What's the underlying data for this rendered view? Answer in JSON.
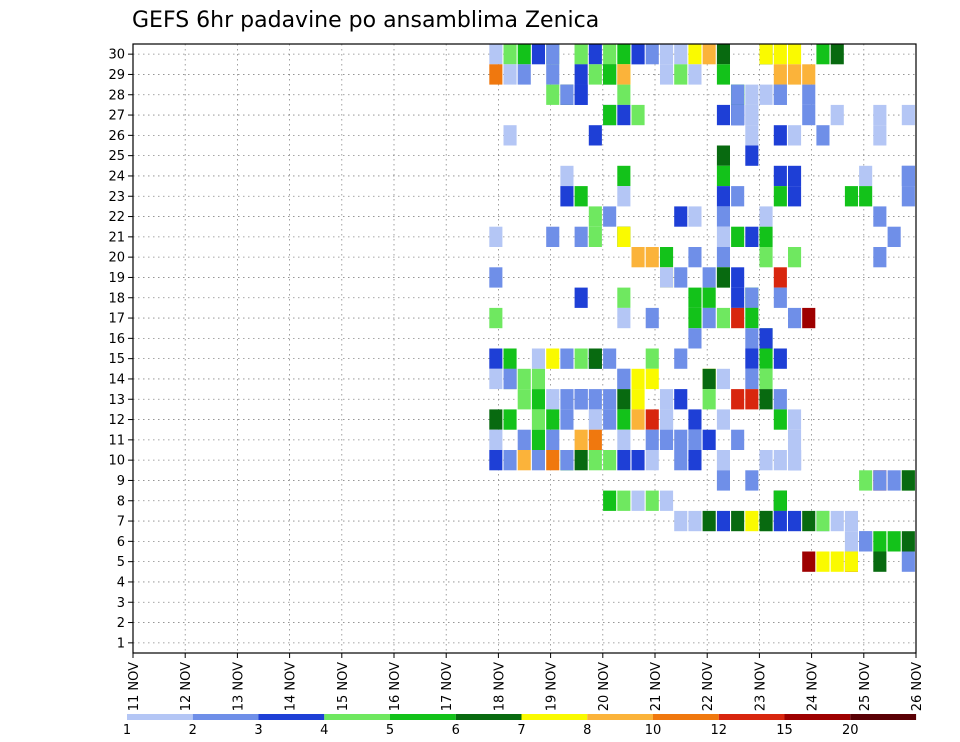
{
  "chart_data": {
    "type": "heatmap",
    "title": "GEFS 6hr padavine po ansamblima Zenica",
    "x_tick_labels": [
      "11 NOV",
      "12 NOV",
      "13 NOV",
      "14 NOV",
      "15 NOV",
      "16 NOV",
      "17 NOV",
      "18 NOV",
      "19 NOV",
      "20 NOV",
      "21 NOV",
      "22 NOV",
      "23 NOV",
      "24 NOV",
      "25 NOV",
      "26 NOV"
    ],
    "y_tick_labels": [
      "1",
      "2",
      "3",
      "4",
      "5",
      "6",
      "7",
      "8",
      "9",
      "10",
      "11",
      "12",
      "13",
      "14",
      "15",
      "16",
      "17",
      "18",
      "19",
      "20",
      "21",
      "22",
      "23",
      "24",
      "25",
      "26",
      "27",
      "28",
      "29",
      "30"
    ],
    "xlim": [
      0,
      60
    ],
    "ylim": [
      0.5,
      30.5
    ],
    "grid": true,
    "legend_position": "bottom",
    "colorbar": {
      "labels": [
        "1",
        "2",
        "3",
        "4",
        "5",
        "6",
        "7",
        "8",
        "10",
        "12",
        "15",
        "20"
      ],
      "colors": [
        "#b4c6f5",
        "#6f8fe8",
        "#1e3fd6",
        "#6fe860",
        "#13c21a",
        "#086a10",
        "#fafa00",
        "#fbb33a",
        "#f0780e",
        "#d8260e",
        "#9e0000",
        "#5a0005"
      ]
    },
    "cells": [
      [
        1,
        30,
        0
      ],
      [
        2,
        30,
        3
      ],
      [
        3,
        30,
        4
      ],
      [
        4,
        30,
        2
      ],
      [
        5,
        30,
        3
      ],
      [
        5,
        30,
        1
      ],
      [
        7,
        30,
        3
      ],
      [
        7,
        30,
        3
      ],
      [
        8,
        30,
        2
      ],
      [
        9,
        30,
        3
      ],
      [
        10,
        30,
        4
      ],
      [
        11,
        30,
        1
      ],
      [
        11,
        30,
        2
      ],
      [
        12,
        30,
        1
      ],
      [
        13,
        30,
        0
      ],
      [
        14,
        30,
        0
      ],
      [
        15,
        30,
        6
      ],
      [
        16,
        30,
        7
      ],
      [
        17,
        30,
        5
      ],
      [
        20,
        30,
        5
      ],
      [
        20,
        30,
        6
      ],
      [
        21,
        30,
        6
      ],
      [
        22,
        30,
        6
      ],
      [
        24,
        30,
        4
      ],
      [
        25,
        30,
        5
      ],
      [
        1,
        29,
        8
      ],
      [
        2,
        29,
        0
      ],
      [
        3,
        29,
        1
      ],
      [
        5,
        29,
        1
      ],
      [
        7,
        29,
        2
      ],
      [
        8,
        29,
        3
      ],
      [
        9,
        29,
        5
      ],
      [
        9,
        29,
        4
      ],
      [
        10,
        29,
        6
      ],
      [
        10,
        29,
        7
      ],
      [
        13,
        29,
        0
      ],
      [
        14,
        29,
        3
      ],
      [
        15,
        29,
        0
      ],
      [
        17,
        29,
        4
      ],
      [
        21,
        29,
        7
      ],
      [
        22,
        29,
        7
      ],
      [
        23,
        29,
        7
      ],
      [
        5,
        28,
        3
      ],
      [
        6,
        28,
        5
      ],
      [
        6,
        28,
        1
      ],
      [
        7,
        28,
        2
      ],
      [
        7,
        28,
        2
      ],
      [
        10,
        28,
        3
      ],
      [
        18,
        28,
        4
      ],
      [
        18,
        28,
        4
      ],
      [
        18,
        28,
        1
      ],
      [
        19,
        28,
        0
      ],
      [
        20,
        28,
        0
      ],
      [
        21,
        28,
        1
      ],
      [
        21,
        28,
        1
      ],
      [
        23,
        28,
        1
      ],
      [
        9,
        27,
        1
      ],
      [
        9,
        27,
        4
      ],
      [
        10,
        27,
        2
      ],
      [
        11,
        27,
        3
      ],
      [
        17,
        27,
        2
      ],
      [
        18,
        27,
        1
      ],
      [
        18,
        27,
        2
      ],
      [
        18,
        27,
        1
      ],
      [
        19,
        27,
        0
      ],
      [
        19,
        27,
        0
      ],
      [
        23,
        27,
        1
      ],
      [
        25,
        27,
        0
      ],
      [
        28,
        27,
        0
      ],
      [
        30,
        27,
        0
      ],
      [
        2,
        26,
        0
      ],
      [
        8,
        26,
        2
      ],
      [
        19,
        26,
        0
      ],
      [
        21,
        26,
        2
      ],
      [
        22,
        26,
        0
      ],
      [
        24,
        26,
        1
      ],
      [
        28,
        26,
        0
      ],
      [
        17,
        25,
        5
      ],
      [
        19,
        25,
        2
      ],
      [
        6,
        24,
        0
      ],
      [
        10,
        24,
        4
      ],
      [
        17,
        24,
        4
      ],
      [
        21,
        24,
        2
      ],
      [
        22,
        24,
        2
      ],
      [
        27,
        24,
        0
      ],
      [
        30,
        24,
        1
      ],
      [
        30,
        24,
        1
      ],
      [
        6,
        23,
        0
      ],
      [
        6,
        23,
        2
      ],
      [
        7,
        23,
        4
      ],
      [
        10,
        23,
        0
      ],
      [
        17,
        23,
        2
      ],
      [
        18,
        23,
        1
      ],
      [
        21,
        23,
        4
      ],
      [
        22,
        23,
        2
      ],
      [
        26,
        23,
        4
      ],
      [
        27,
        23,
        4
      ],
      [
        30,
        23,
        1
      ],
      [
        8,
        22,
        3
      ],
      [
        9,
        22,
        1
      ],
      [
        14,
        22,
        2
      ],
      [
        15,
        22,
        0
      ],
      [
        17,
        22,
        1
      ],
      [
        20,
        22,
        0
      ],
      [
        28,
        22,
        1
      ],
      [
        1,
        21,
        0
      ],
      [
        5,
        21,
        1
      ],
      [
        7,
        21,
        1
      ],
      [
        8,
        21,
        3
      ],
      [
        10,
        21,
        5
      ],
      [
        10,
        21,
        6
      ],
      [
        17,
        21,
        0
      ],
      [
        18,
        21,
        4
      ],
      [
        19,
        21,
        2
      ],
      [
        20,
        21,
        4
      ],
      [
        29,
        21,
        1
      ],
      [
        11,
        20,
        7
      ],
      [
        12,
        20,
        7
      ],
      [
        13,
        20,
        4
      ],
      [
        15,
        20,
        1
      ],
      [
        17,
        20,
        1
      ],
      [
        20,
        20,
        3
      ],
      [
        22,
        20,
        3
      ],
      [
        28,
        20,
        1
      ],
      [
        1,
        19,
        1
      ],
      [
        13,
        19,
        6
      ],
      [
        13,
        19,
        0
      ],
      [
        14,
        19,
        1
      ],
      [
        16,
        19,
        1
      ],
      [
        17,
        19,
        3
      ],
      [
        17,
        19,
        5
      ],
      [
        18,
        19,
        2
      ],
      [
        21,
        19,
        9
      ],
      [
        7,
        18,
        2
      ],
      [
        10,
        18,
        3
      ],
      [
        15,
        18,
        4
      ],
      [
        16,
        18,
        4
      ],
      [
        18,
        18,
        2
      ],
      [
        19,
        18,
        4
      ],
      [
        19,
        18,
        1
      ],
      [
        21,
        18,
        1
      ],
      [
        1,
        17,
        3
      ],
      [
        10,
        17,
        0
      ],
      [
        12,
        17,
        1
      ],
      [
        15,
        17,
        4
      ],
      [
        16,
        17,
        1
      ],
      [
        17,
        17,
        3
      ],
      [
        18,
        17,
        9
      ],
      [
        19,
        17,
        4
      ],
      [
        22,
        17,
        1
      ],
      [
        23,
        17,
        10
      ],
      [
        15,
        16,
        1
      ],
      [
        19,
        16,
        1
      ],
      [
        20,
        16,
        3
      ],
      [
        20,
        16,
        2
      ],
      [
        1,
        15,
        2
      ],
      [
        2,
        15,
        4
      ],
      [
        4,
        15,
        0
      ],
      [
        5,
        15,
        6
      ],
      [
        6,
        15,
        0
      ],
      [
        6,
        15,
        1
      ],
      [
        7,
        15,
        3
      ],
      [
        8,
        15,
        2
      ],
      [
        8,
        15,
        5
      ],
      [
        9,
        15,
        1
      ],
      [
        12,
        15,
        3
      ],
      [
        14,
        15,
        1
      ],
      [
        19,
        15,
        2
      ],
      [
        20,
        15,
        4
      ],
      [
        21,
        15,
        2
      ],
      [
        1,
        14,
        0
      ],
      [
        2,
        14,
        5
      ],
      [
        2,
        14,
        1
      ],
      [
        3,
        14,
        3
      ],
      [
        4,
        14,
        3
      ],
      [
        10,
        14,
        1
      ],
      [
        10,
        14,
        1
      ],
      [
        11,
        14,
        6
      ],
      [
        12,
        14,
        6
      ],
      [
        16,
        14,
        6
      ],
      [
        16,
        14,
        5
      ],
      [
        17,
        14,
        0
      ],
      [
        19,
        14,
        1
      ],
      [
        20,
        14,
        3
      ],
      [
        3,
        13,
        3
      ],
      [
        4,
        13,
        4
      ],
      [
        5,
        13,
        0
      ],
      [
        6,
        13,
        1
      ],
      [
        7,
        13,
        2
      ],
      [
        7,
        13,
        1
      ],
      [
        8,
        13,
        1
      ],
      [
        9,
        13,
        1
      ],
      [
        10,
        13,
        5
      ],
      [
        11,
        13,
        6
      ],
      [
        13,
        13,
        0
      ],
      [
        14,
        13,
        2
      ],
      [
        16,
        13,
        3
      ],
      [
        18,
        13,
        9
      ],
      [
        19,
        13,
        9
      ],
      [
        20,
        13,
        5
      ],
      [
        21,
        13,
        1
      ],
      [
        1,
        12,
        5
      ],
      [
        2,
        12,
        4
      ],
      [
        4,
        12,
        3
      ],
      [
        5,
        12,
        4
      ],
      [
        6,
        12,
        1
      ],
      [
        8,
        12,
        0
      ],
      [
        9,
        12,
        1
      ],
      [
        10,
        12,
        4
      ],
      [
        11,
        12,
        7
      ],
      [
        12,
        12,
        9
      ],
      [
        13,
        12,
        0
      ],
      [
        13,
        12,
        0
      ],
      [
        15,
        12,
        2
      ],
      [
        17,
        12,
        0
      ],
      [
        21,
        12,
        4
      ],
      [
        22,
        12,
        0
      ],
      [
        1,
        11,
        0
      ],
      [
        3,
        11,
        1
      ],
      [
        4,
        11,
        4
      ],
      [
        5,
        11,
        1
      ],
      [
        7,
        11,
        7
      ],
      [
        8,
        11,
        8
      ],
      [
        10,
        11,
        0
      ],
      [
        12,
        11,
        1
      ],
      [
        13,
        11,
        1
      ],
      [
        14,
        11,
        1
      ],
      [
        15,
        11,
        0
      ],
      [
        15,
        11,
        1
      ],
      [
        16,
        11,
        2
      ],
      [
        18,
        11,
        1
      ],
      [
        22,
        11,
        0
      ],
      [
        1,
        10,
        2
      ],
      [
        2,
        10,
        1
      ],
      [
        3,
        10,
        7
      ],
      [
        4,
        10,
        1
      ],
      [
        5,
        10,
        8
      ],
      [
        6,
        10,
        4
      ],
      [
        6,
        10,
        1
      ],
      [
        7,
        10,
        5
      ],
      [
        8,
        10,
        3
      ],
      [
        9,
        10,
        3
      ],
      [
        10,
        10,
        2
      ],
      [
        11,
        10,
        2
      ],
      [
        12,
        10,
        0
      ],
      [
        14,
        10,
        1
      ],
      [
        15,
        10,
        2
      ],
      [
        17,
        10,
        0
      ],
      [
        20,
        10,
        0
      ],
      [
        21,
        10,
        0
      ],
      [
        22,
        10,
        1
      ],
      [
        22,
        10,
        0
      ],
      [
        17,
        9,
        1
      ],
      [
        19,
        9,
        1
      ],
      [
        27,
        9,
        3
      ],
      [
        28,
        9,
        9
      ],
      [
        28,
        9,
        1
      ],
      [
        29,
        9,
        1
      ],
      [
        30,
        9,
        3
      ],
      [
        30,
        9,
        5
      ],
      [
        9,
        8,
        4
      ],
      [
        10,
        8,
        3
      ],
      [
        11,
        8,
        0
      ],
      [
        12,
        8,
        3
      ],
      [
        13,
        8,
        0
      ],
      [
        21,
        8,
        4
      ],
      [
        21,
        8,
        5
      ],
      [
        21,
        8,
        4
      ],
      [
        14,
        7,
        0
      ],
      [
        15,
        7,
        0
      ],
      [
        16,
        7,
        0
      ],
      [
        16,
        7,
        5
      ],
      [
        17,
        7,
        2
      ],
      [
        18,
        7,
        5
      ],
      [
        19,
        7,
        6
      ],
      [
        20,
        7,
        3
      ],
      [
        20,
        7,
        5
      ],
      [
        21,
        7,
        0
      ],
      [
        21,
        7,
        2
      ],
      [
        22,
        7,
        2
      ],
      [
        23,
        7,
        5
      ],
      [
        24,
        7,
        1
      ],
      [
        24,
        7,
        3
      ],
      [
        25,
        7,
        0
      ],
      [
        26,
        7,
        0
      ],
      [
        26,
        6,
        0
      ],
      [
        27,
        6,
        1
      ],
      [
        27,
        6,
        1
      ],
      [
        28,
        6,
        4
      ],
      [
        29,
        6,
        4
      ],
      [
        30,
        6,
        5
      ],
      [
        23,
        5,
        10
      ],
      [
        24,
        5,
        6
      ],
      [
        25,
        5,
        6
      ],
      [
        26,
        5,
        10
      ],
      [
        26,
        5,
        6
      ],
      [
        28,
        5,
        5
      ],
      [
        30,
        5,
        1
      ]
    ]
  }
}
